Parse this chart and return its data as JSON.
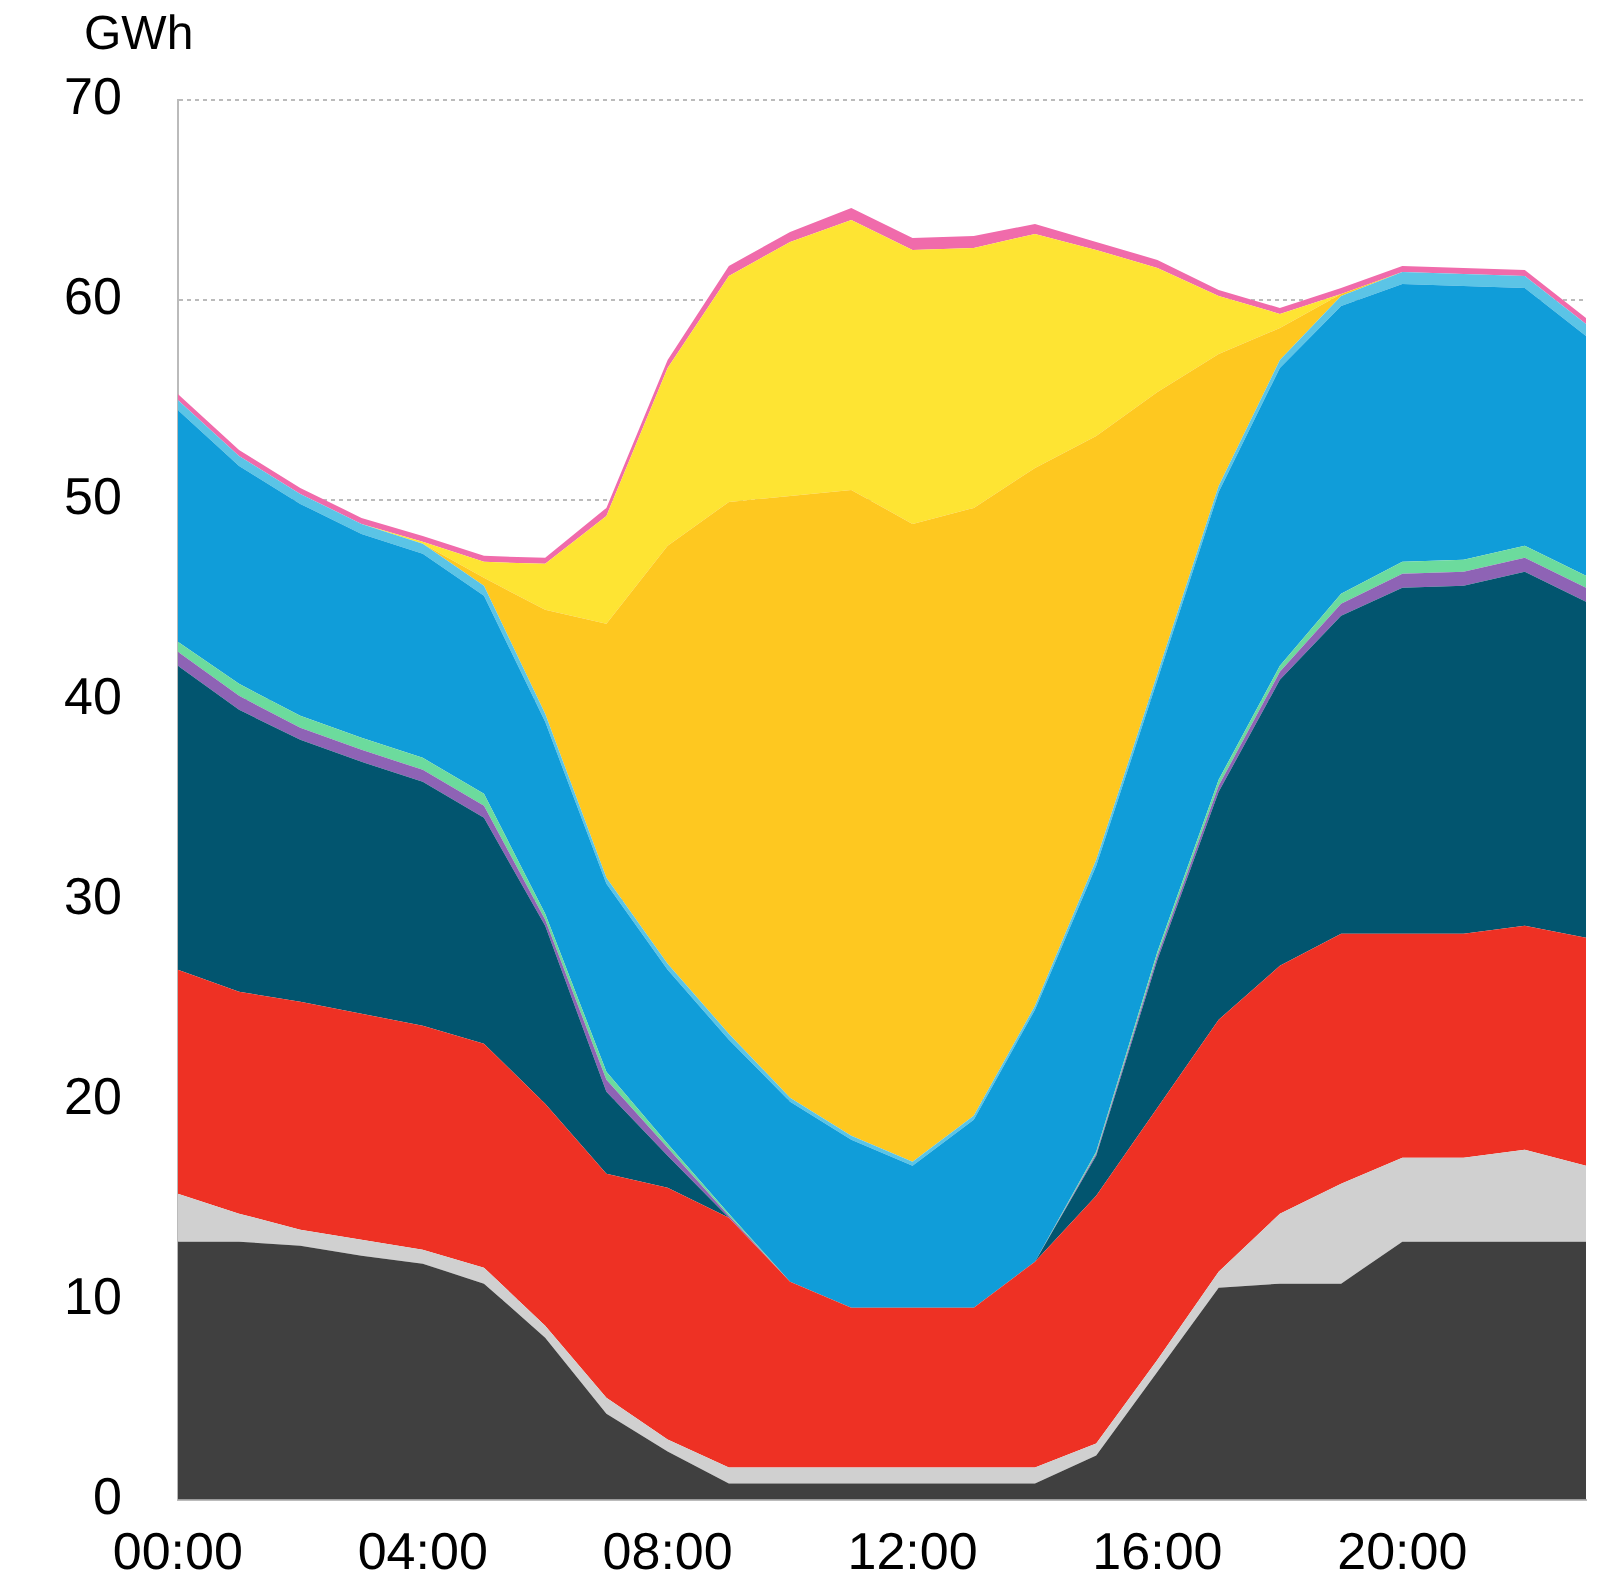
{
  "chart_data": {
    "type": "area",
    "stacked": true,
    "ylabel": "GWh",
    "categories": [
      "00:00",
      null,
      null,
      null,
      "04:00",
      null,
      null,
      null,
      "08:00",
      null,
      null,
      null,
      "12:00",
      null,
      null,
      null,
      "16:00",
      null,
      null,
      null,
      "20:00",
      null,
      null,
      null
    ],
    "ylim": [
      0,
      70
    ],
    "yticks": [
      0,
      10,
      20,
      30,
      40,
      50,
      60,
      70
    ],
    "grid": "y",
    "series": [
      {
        "color": "#404040",
        "values": [
          12.9,
          12.9,
          12.7,
          12.2,
          11.8,
          10.8,
          8.1,
          4.3,
          2.4,
          0.8,
          0.8,
          0.8,
          0.8,
          0.8,
          0.8,
          2.2,
          6.4,
          10.6,
          10.8,
          10.8,
          12.9,
          12.9,
          12.9,
          12.9
        ]
      },
      {
        "color": "#d0d0d0",
        "values": [
          2.4,
          1.4,
          0.8,
          0.8,
          0.7,
          0.8,
          0.6,
          0.8,
          0.6,
          0.8,
          0.8,
          0.8,
          0.8,
          0.8,
          0.8,
          0.6,
          0.6,
          0.8,
          3.5,
          5.0,
          4.2,
          4.2,
          4.6,
          3.8
        ]
      },
      {
        "color": "#ee3124",
        "values": [
          11.2,
          11.1,
          11.4,
          11.3,
          11.2,
          11.2,
          11.1,
          11.2,
          12.6,
          12.5,
          9.3,
          8.0,
          8.0,
          8.0,
          10.3,
          12.4,
          12.6,
          12.6,
          12.4,
          12.5,
          11.2,
          11.2,
          11.2,
          11.4
        ]
      },
      {
        "color": "#02556f",
        "values": [
          15.2,
          14.1,
          13.1,
          12.6,
          12.2,
          11.3,
          8.9,
          4.1,
          1.6,
          0,
          0,
          0,
          0,
          0,
          0,
          2.0,
          7.4,
          11.4,
          14.3,
          15.9,
          17.3,
          17.4,
          17.7,
          16.8
        ]
      },
      {
        "color": "#8e63b5",
        "values": [
          0.7,
          0.7,
          0.6,
          0.6,
          0.6,
          0.6,
          0.3,
          0.6,
          0.4,
          0.1,
          0,
          0,
          0,
          0,
          0,
          0.1,
          0.2,
          0.3,
          0.4,
          0.6,
          0.7,
          0.7,
          0.7,
          0.7
        ]
      },
      {
        "color": "#6cdb9d",
        "values": [
          0.5,
          0.6,
          0.6,
          0.6,
          0.6,
          0.6,
          0.3,
          0.4,
          0.2,
          0.1,
          0,
          0,
          0,
          0,
          0,
          0.1,
          0.2,
          0.3,
          0.3,
          0.5,
          0.6,
          0.6,
          0.6,
          0.6
        ]
      },
      {
        "color": "#109dd9",
        "values": [
          11.6,
          10.9,
          10.6,
          10.2,
          10.2,
          9.9,
          9.6,
          9.4,
          8.7,
          8.7,
          9.0,
          8.4,
          7.1,
          9.4,
          12.6,
          14.3,
          13.6,
          14.4,
          14.9,
          14.4,
          13.9,
          13.7,
          12.9,
          12.0
        ]
      },
      {
        "color": "#5bc4e6",
        "values": [
          0.5,
          0.5,
          0.5,
          0.5,
          0.5,
          0.5,
          0.4,
          0.3,
          0.3,
          0.3,
          0.2,
          0.2,
          0.2,
          0.2,
          0.2,
          0.3,
          0.3,
          0.3,
          0.4,
          0.5,
          0.6,
          0.6,
          0.6,
          0.6
        ]
      },
      {
        "color": "#fec820",
        "values": [
          0,
          0,
          0,
          0,
          0,
          0.4,
          5.2,
          12.7,
          20.9,
          26.6,
          30.1,
          32.3,
          31.9,
          30.4,
          26.9,
          21.2,
          14.1,
          6.6,
          1.6,
          0.1,
          0,
          0,
          0,
          0
        ]
      },
      {
        "color": "#fee433",
        "values": [
          0,
          0,
          0,
          0,
          0.1,
          0.8,
          2.3,
          5.4,
          8.9,
          11.3,
          12.7,
          13.5,
          13.7,
          13.0,
          11.7,
          9.3,
          6.2,
          2.9,
          0.7,
          0,
          0,
          0,
          0,
          0
        ]
      },
      {
        "color": "#f06bab",
        "values": [
          0.3,
          0.3,
          0.3,
          0.3,
          0.3,
          0.3,
          0.3,
          0.4,
          0.4,
          0.5,
          0.5,
          0.6,
          0.6,
          0.6,
          0.5,
          0.4,
          0.4,
          0.3,
          0.3,
          0.3,
          0.3,
          0.3,
          0.3,
          0.3
        ]
      }
    ]
  }
}
